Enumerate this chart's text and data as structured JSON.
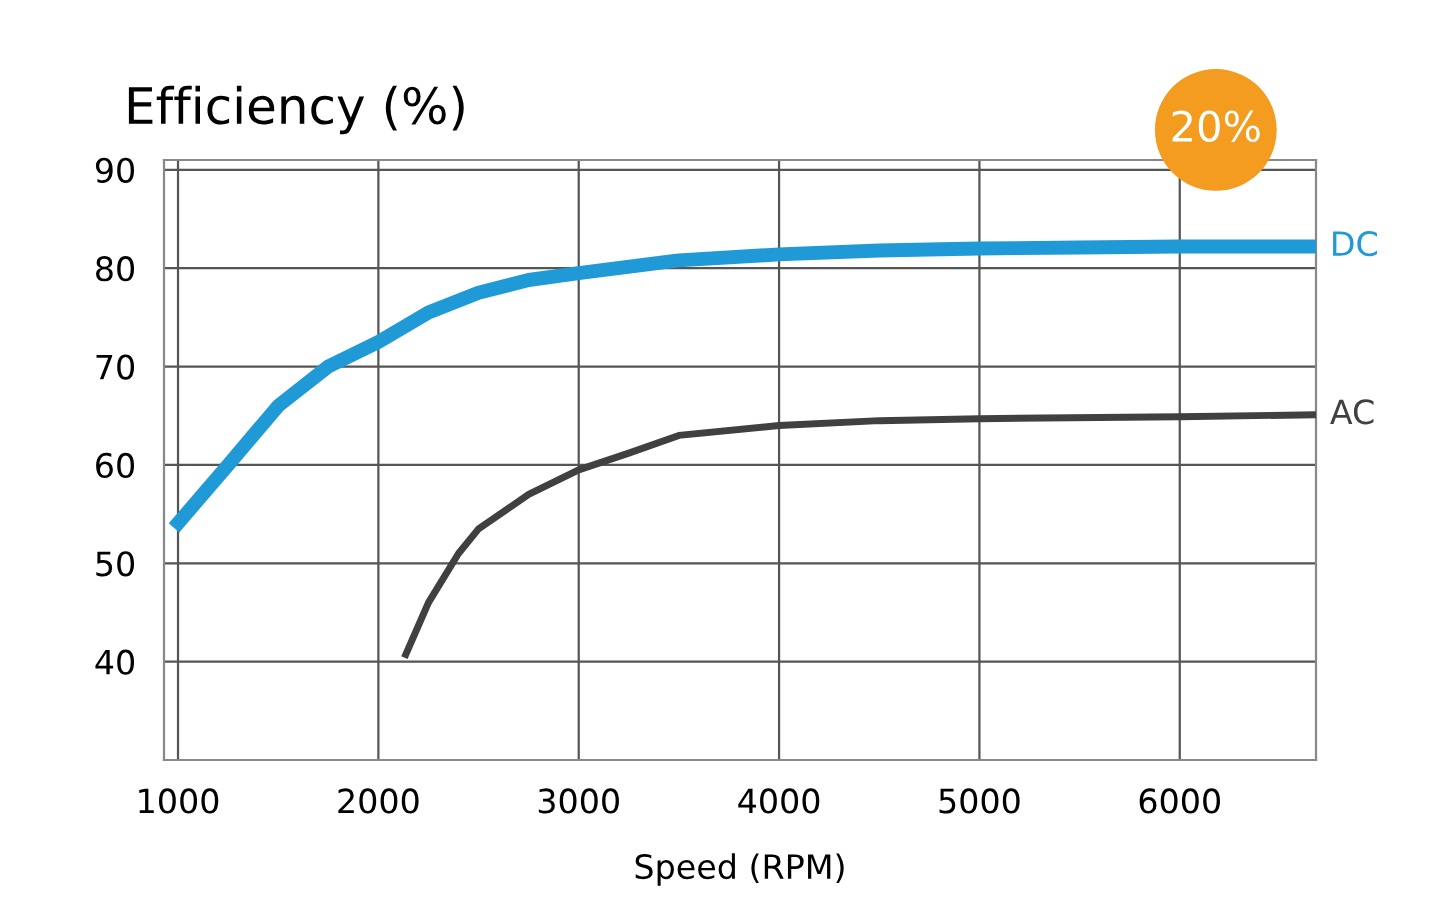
{
  "chart_data": {
    "type": "line",
    "title": "Efficiency (%)",
    "xlabel": "Speed (RPM)",
    "xlim": [
      930,
      6680
    ],
    "ylim": [
      30,
      91
    ],
    "xticks": [
      1000,
      2000,
      3000,
      4000,
      5000,
      6000
    ],
    "yticks": [
      40,
      50,
      60,
      70,
      80,
      90
    ],
    "grid": true,
    "line_style": "solid",
    "marker": "none",
    "series": [
      {
        "name": "DC",
        "color": "#1f9ad6",
        "x": [
          980,
          1250,
          1500,
          1750,
          2000,
          2250,
          2500,
          2750,
          3000,
          3500,
          4000,
          4500,
          5000,
          5500,
          6000,
          6680
        ],
        "values": [
          53.6,
          60,
          66,
          70,
          72.5,
          75.5,
          77.5,
          78.8,
          79.5,
          80.8,
          81.4,
          81.8,
          82,
          82.1,
          82.2,
          82.2
        ]
      },
      {
        "name": "AC",
        "color": "#404040",
        "x": [
          2130,
          2250,
          2400,
          2500,
          2750,
          3000,
          3250,
          3500,
          4000,
          4500,
          5000,
          6000,
          6680
        ],
        "values": [
          40.4,
          46,
          51,
          53.5,
          57,
          59.5,
          61.2,
          63,
          64,
          64.5,
          64.7,
          64.9,
          65.1
        ]
      }
    ],
    "annotations": [
      {
        "text": "20%",
        "x": 6180,
        "y": 82.2
      }
    ]
  }
}
